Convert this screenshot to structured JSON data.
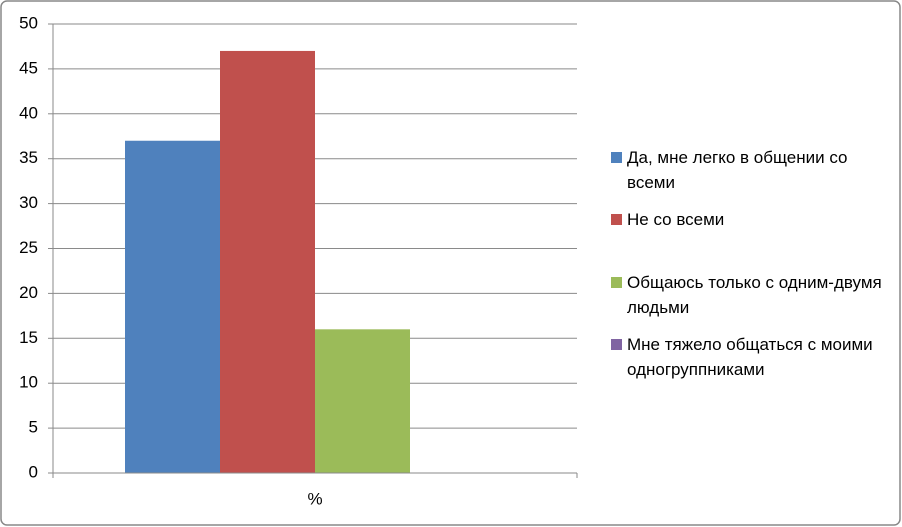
{
  "chart_data": {
    "type": "bar",
    "categories": [
      "%"
    ],
    "series": [
      {
        "name": "Да, мне легко в общении со всеми",
        "color": "#4f81bd",
        "values": [
          37
        ]
      },
      {
        "name": "Не со всеми",
        "color": "#c0504d",
        "values": [
          47
        ]
      },
      {
        "name": "Общаюсь только с одним-двумя людьми",
        "color": "#9bbb59",
        "values": [
          16
        ]
      },
      {
        "name": "Мне тяжело общаться с моими одногруппниками",
        "color": "#8064a2",
        "values": [
          0
        ]
      }
    ],
    "ylim": [
      0,
      50
    ],
    "yticks": [
      0,
      5,
      10,
      15,
      20,
      25,
      30,
      35,
      40,
      45,
      50
    ],
    "grid": true,
    "legend_position": "right"
  }
}
